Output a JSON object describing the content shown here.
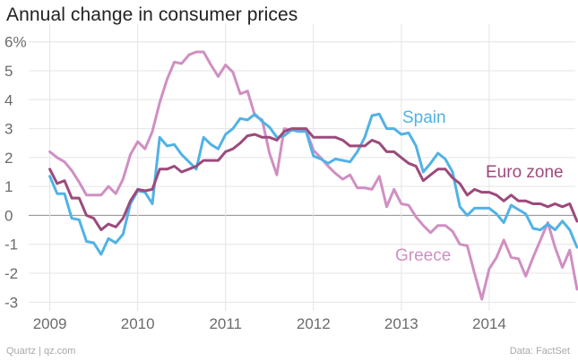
{
  "chart_data": {
    "type": "line",
    "title": "Annual change in consumer prices",
    "xlabel": "",
    "ylabel": "",
    "xlim": [
      2008.8,
      2014.98
    ],
    "ylim": [
      -3.3,
      6.3
    ],
    "y_ticks": [
      6,
      5,
      4,
      3,
      2,
      1,
      0,
      -1,
      -2,
      -3
    ],
    "y_tick_labels": [
      "6%",
      "5",
      "4",
      "3",
      "2",
      "1",
      "0",
      "-1",
      "-2",
      "-3"
    ],
    "x_ticks": [
      2009,
      2010,
      2011,
      2012,
      2013,
      2014
    ],
    "x_tick_labels": [
      "2009",
      "2010",
      "2011",
      "2012",
      "2013",
      "2014"
    ],
    "grid": true,
    "legend": "inline labels next to series",
    "series": [
      {
        "name": "Greece",
        "label": "Greece",
        "color": "#d08fc2",
        "start": 2009.0,
        "step": 0.08333,
        "values": [
          2.2,
          2.0,
          1.85,
          1.55,
          1.15,
          0.7,
          0.7,
          0.7,
          1.0,
          0.75,
          1.25,
          2.1,
          2.55,
          2.3,
          2.9,
          3.9,
          4.7,
          5.3,
          5.25,
          5.55,
          5.65,
          5.65,
          5.2,
          4.8,
          5.2,
          4.95,
          4.2,
          4.3,
          3.45,
          3.3,
          2.15,
          1.4,
          3.0,
          2.95,
          2.95,
          2.95,
          2.25,
          2.0,
          1.7,
          1.45,
          1.25,
          1.4,
          0.95,
          0.95,
          0.9,
          1.35,
          0.3,
          0.9,
          0.4,
          0.35,
          -0.05,
          -0.35,
          -0.6,
          -0.35,
          -0.35,
          -0.55,
          -1.0,
          -1.05,
          -2.0,
          -2.9,
          -1.85,
          -1.45,
          -0.85,
          -1.45,
          -1.5,
          -2.1,
          -1.45,
          -0.85,
          -0.25,
          -1.1,
          -1.8,
          -1.2,
          -2.55
        ]
      },
      {
        "name": "Spain",
        "label": "Spain",
        "color": "#51b2e5",
        "start": 2009.0,
        "step": 0.08333,
        "values": [
          1.35,
          0.75,
          0.75,
          -0.1,
          -0.15,
          -0.9,
          -0.95,
          -1.35,
          -0.8,
          -0.95,
          -0.65,
          0.4,
          0.85,
          0.8,
          0.4,
          2.7,
          2.4,
          2.45,
          2.1,
          1.85,
          1.6,
          2.7,
          2.45,
          2.3,
          2.8,
          3.0,
          3.35,
          3.3,
          3.5,
          3.25,
          3.05,
          2.7,
          2.75,
          2.95,
          2.9,
          2.9,
          2.05,
          1.95,
          1.8,
          1.95,
          1.9,
          1.85,
          2.2,
          2.7,
          3.45,
          3.5,
          3.0,
          3.0,
          2.8,
          2.85,
          2.4,
          1.5,
          1.8,
          2.15,
          1.95,
          1.5,
          0.3,
          0.0,
          0.25,
          0.25,
          0.25,
          0.05,
          -0.25,
          0.35,
          0.2,
          0.05,
          -0.45,
          -0.5,
          -0.3,
          -0.5,
          -0.2,
          -0.5,
          -1.1
        ]
      },
      {
        "name": "Euro zone",
        "label": "Euro zone",
        "color": "#9c4a7c",
        "start": 2009.0,
        "step": 0.08333,
        "values": [
          1.6,
          1.1,
          1.2,
          0.6,
          0.6,
          0.0,
          -0.1,
          -0.5,
          -0.3,
          -0.4,
          -0.1,
          0.5,
          0.9,
          0.85,
          0.9,
          1.6,
          1.6,
          1.7,
          1.5,
          1.6,
          1.7,
          1.9,
          1.9,
          1.9,
          2.2,
          2.3,
          2.5,
          2.75,
          2.8,
          2.7,
          2.7,
          2.6,
          2.9,
          3.0,
          3.0,
          3.0,
          2.7,
          2.7,
          2.7,
          2.7,
          2.6,
          2.4,
          2.4,
          2.4,
          2.6,
          2.5,
          2.2,
          2.2,
          2.0,
          1.8,
          1.7,
          1.2,
          1.4,
          1.6,
          1.6,
          1.3,
          1.1,
          0.7,
          0.9,
          0.8,
          0.8,
          0.7,
          0.5,
          0.7,
          0.5,
          0.5,
          0.4,
          0.4,
          0.3,
          0.4,
          0.3,
          0.4,
          -0.2
        ]
      }
    ]
  },
  "footer": {
    "source_left": "Quartz | qz.com",
    "source_right": "Data: FactSet"
  },
  "colors": {
    "zero_line": "#9a9a9a",
    "grid": "#e4e4e4",
    "tick_text": "#6b6b6b"
  }
}
